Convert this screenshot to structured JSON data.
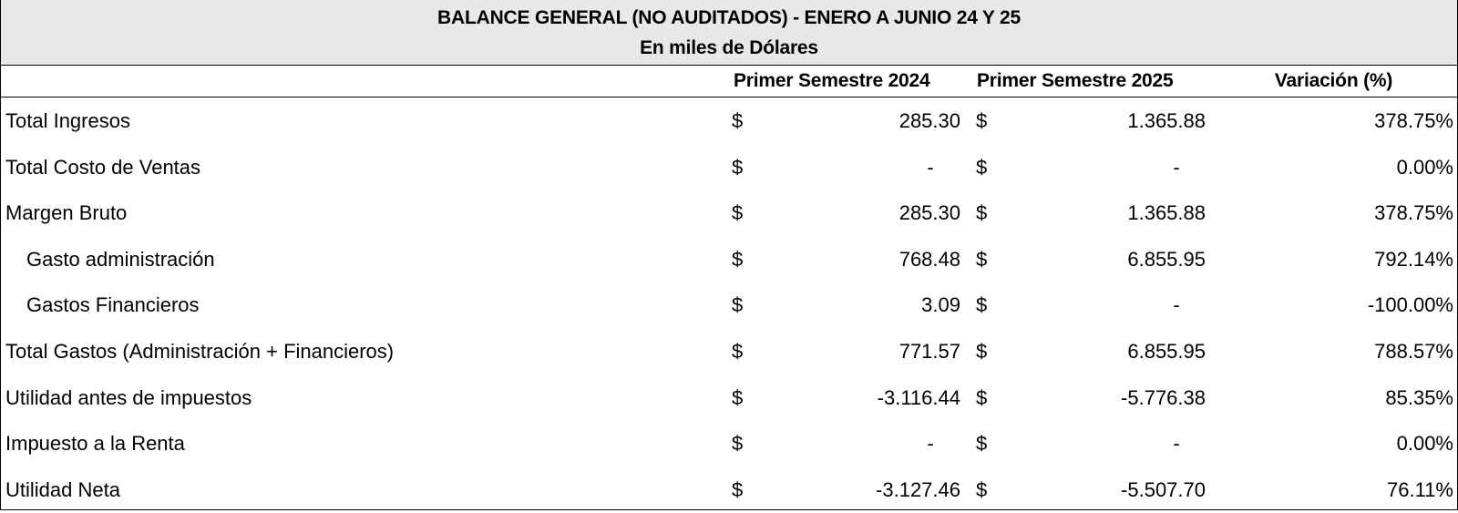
{
  "title": "BALANCE GENERAL (NO AUDITADOS) - ENERO A JUNIO 24 Y 25",
  "subtitle": "En miles de Dólares",
  "headers": {
    "col_2024": "Primer Semestre 2024",
    "col_2025": "Primer Semestre 2025",
    "col_var": "Variación (%)"
  },
  "currency_symbol": "$",
  "rows": [
    {
      "label": "Total Ingresos",
      "v2024": "285.30",
      "v2025": "1.365.88",
      "var": "378.75%"
    },
    {
      "label": "Total Costo de Ventas",
      "v2024": "-",
      "v2025": "-",
      "var": "0.00%"
    },
    {
      "label": "Margen Bruto",
      "v2024": "285.30",
      "v2025": "1.365.88",
      "var": "378.75%"
    },
    {
      "label": "Gasto administración",
      "v2024": "768.48",
      "v2025": "6.855.95",
      "var": "792.14%"
    },
    {
      "label": "Gastos Financieros",
      "v2024": "3.09",
      "v2025": "-",
      "var": "-100.00%"
    },
    {
      "label": "Total Gastos (Administración + Financieros)",
      "v2024": "771.57",
      "v2025": "6.855.95",
      "var": "788.57%"
    },
    {
      "label": "Utilidad antes de impuestos",
      "v2024": "-3.116.44",
      "v2025": "-5.776.38",
      "var": "85.35%"
    },
    {
      "label": "Impuesto a la Renta",
      "v2024": "-",
      "v2025": "-",
      "var": "0.00%"
    },
    {
      "label": "Utilidad Neta",
      "v2024": "-3.127.46",
      "v2025": "-5.507.70",
      "var": "76.11%"
    }
  ]
}
